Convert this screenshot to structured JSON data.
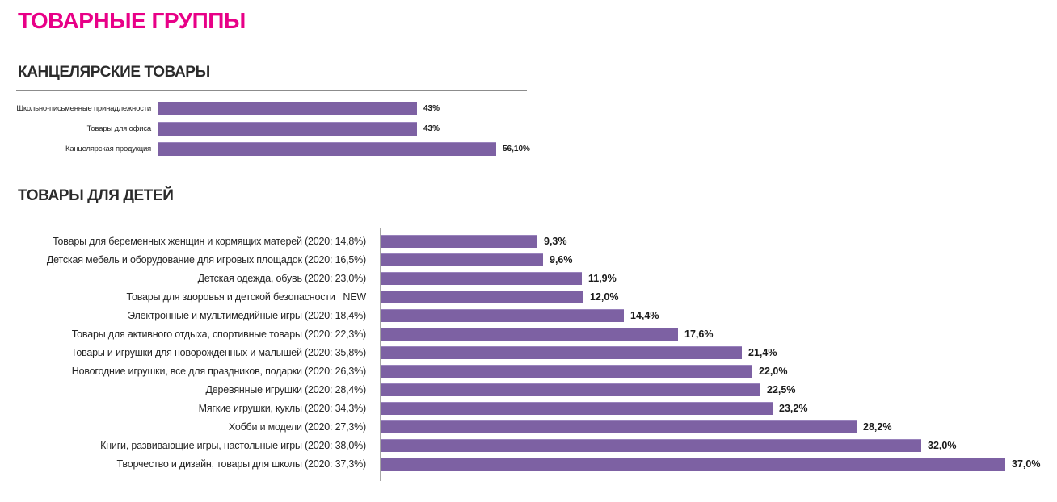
{
  "page": {
    "title": "ТОВАРНЫЕ ГРУППЫ"
  },
  "colors": {
    "title_pink": "#E80087",
    "bar_purple": "#7D61A3",
    "axis_gray": "#A6A6A6",
    "text_dark": "#262626"
  },
  "chart_data": [
    {
      "type": "bar",
      "orientation": "horizontal",
      "title": "КАНЦЕЛЯРСКИЕ ТОВАРЫ",
      "categories": [
        "Школьно-письменные принадлежности",
        "Товары для офиса",
        "Канцелярская продукция"
      ],
      "values": [
        43,
        43,
        56.1
      ],
      "value_labels": [
        "43%",
        "43%",
        "56,10%"
      ],
      "xlim": [
        0,
        60
      ],
      "grid": false,
      "bar_color": "#7D61A3"
    },
    {
      "type": "bar",
      "orientation": "horizontal",
      "title": "ТОВАРЫ ДЛЯ ДЕТЕЙ",
      "categories": [
        "Товары для беременных женщин и кормящих матерей (2020: 14,8%)",
        "Детская мебель и  оборудование для игровых площадок (2020: 16,5%)",
        "Детская одежда, обувь (2020: 23,0%)",
        "Товары для здоровья и детской безопасности   NEW",
        "Электронные и мультимедийные игры (2020: 18,4%)",
        "Товары для активного отдыха, спортивные товары (2020: 22,3%)",
        "Товары и игрушки для новорожденных и малышей (2020: 35,8%)",
        "Новогодние игрушки, все для праздников, подарки (2020: 26,3%)",
        "Деревянные игрушки (2020: 28,4%)",
        "Мягкие игрушки, куклы (2020: 34,3%)",
        "Хобби и модели (2020: 27,3%)",
        "Книги, развивающие игры, настольные игры (2020: 38,0%)",
        "Творчество и дизайн, товары для школы (2020: 37,3%)"
      ],
      "values": [
        9.3,
        9.6,
        11.9,
        12.0,
        14.4,
        17.6,
        21.4,
        22.0,
        22.5,
        23.2,
        28.2,
        32.0,
        37.0
      ],
      "value_labels": [
        "9,3%",
        "9,6%",
        "11,9%",
        "12,0%",
        "14,4%",
        "17,6%",
        "21,4%",
        "22,0%",
        "22,5%",
        "23,2%",
        "28,2%",
        "32,0%",
        "37,0%"
      ],
      "prev_year_values": [
        14.8,
        16.5,
        23.0,
        null,
        18.4,
        22.3,
        35.8,
        26.3,
        28.4,
        34.3,
        27.3,
        38.0,
        37.3
      ],
      "xlim": [
        0,
        40
      ],
      "grid": false,
      "bar_color": "#7D61A3"
    }
  ]
}
